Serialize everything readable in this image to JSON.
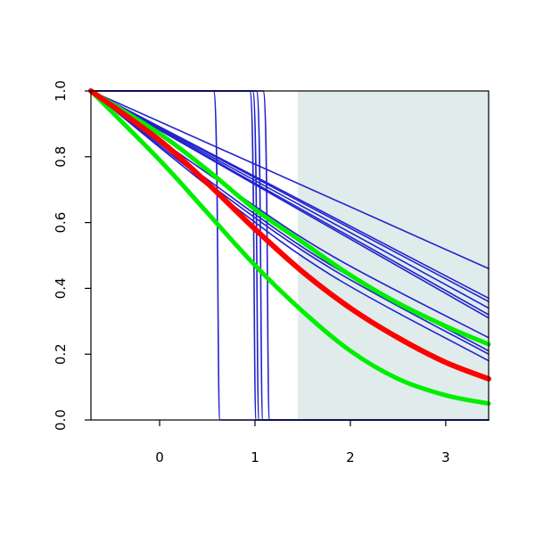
{
  "chart_data": {
    "type": "line",
    "title": "",
    "xlabel": "",
    "ylabel": "",
    "xlim": [
      -0.72,
      3.45
    ],
    "ylim": [
      0.0,
      1.0
    ],
    "x_ticks": [
      0,
      1,
      2,
      3
    ],
    "x_tick_labels": [
      "0",
      "1",
      "2",
      "3"
    ],
    "y_ticks": [
      0.0,
      0.2,
      0.4,
      0.6,
      0.8,
      1.0
    ],
    "y_tick_labels": [
      "0.0",
      "0.2",
      "0.4",
      "0.6",
      "0.8",
      "1.0"
    ],
    "grid": false,
    "shaded_region": {
      "x": [
        1.45,
        3.45
      ],
      "color": "#e0ecec"
    },
    "colors": {
      "step": "#2222cc",
      "blue": "#2222cc",
      "red": "#ff0000",
      "green": "#00ee00"
    },
    "step_curves": [
      {
        "drop_x": 0.62
      },
      {
        "drop_x": 1.0
      },
      {
        "drop_x": 1.03
      },
      {
        "drop_x": 1.07
      },
      {
        "drop_x": 1.14
      }
    ],
    "blue_curves": [
      {
        "x": [
          -0.72,
          3.45
        ],
        "y": [
          1.0,
          0.46
        ]
      },
      {
        "x": [
          -0.72,
          3.45
        ],
        "y": [
          1.0,
          0.37
        ]
      },
      {
        "x": [
          -0.72,
          3.45
        ],
        "y": [
          1.0,
          0.36
        ]
      },
      {
        "x": [
          -0.72,
          3.45
        ],
        "y": [
          1.0,
          0.34
        ]
      },
      {
        "x": [
          -0.72,
          3.45
        ],
        "y": [
          1.0,
          0.32
        ]
      },
      {
        "x": [
          -0.72,
          3.45
        ],
        "y": [
          1.0,
          0.31
        ]
      },
      {
        "x": [
          -0.72,
          0.6,
          1.8,
          3.45
        ],
        "y": [
          1.0,
          0.73,
          0.5,
          0.25
        ]
      },
      {
        "x": [
          -0.72,
          0.6,
          1.8,
          3.45
        ],
        "y": [
          1.0,
          0.71,
          0.47,
          0.21
        ]
      },
      {
        "x": [
          -0.72,
          0.6,
          1.8,
          3.45
        ],
        "y": [
          1.0,
          0.69,
          0.44,
          0.18
        ]
      },
      {
        "x": [
          -0.72,
          0.6,
          1.8,
          3.45
        ],
        "y": [
          1.0,
          0.7,
          0.46,
          0.2
        ]
      }
    ],
    "red_curve": {
      "x": [
        -0.72,
        0.0,
        0.5,
        1.0,
        1.5,
        2.0,
        2.5,
        3.0,
        3.45
      ],
      "y": [
        1.0,
        0.85,
        0.72,
        0.58,
        0.45,
        0.34,
        0.25,
        0.175,
        0.125
      ]
    },
    "green_curves": [
      {
        "x": [
          -0.72,
          0.0,
          0.5,
          1.0,
          1.5,
          2.0,
          2.5,
          3.0,
          3.45
        ],
        "y": [
          1.0,
          0.87,
          0.76,
          0.64,
          0.54,
          0.44,
          0.355,
          0.285,
          0.23
        ]
      },
      {
        "x": [
          -0.72,
          0.0,
          0.5,
          1.0,
          1.5,
          2.0,
          2.5,
          3.0,
          3.45
        ],
        "y": [
          1.0,
          0.79,
          0.63,
          0.47,
          0.33,
          0.21,
          0.125,
          0.075,
          0.05
        ]
      }
    ]
  }
}
